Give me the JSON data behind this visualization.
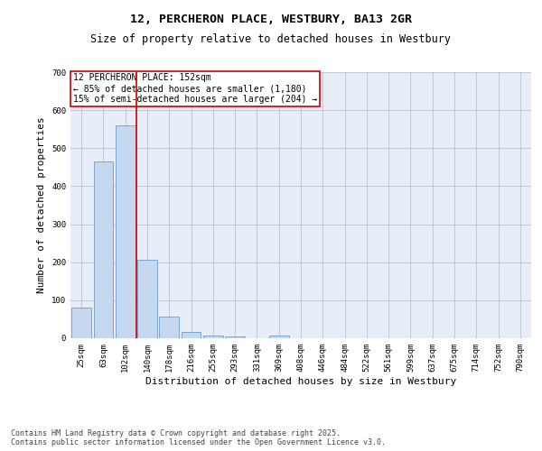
{
  "title": "12, PERCHERON PLACE, WESTBURY, BA13 2GR",
  "subtitle": "Size of property relative to detached houses in Westbury",
  "xlabel": "Distribution of detached houses by size in Westbury",
  "ylabel": "Number of detached properties",
  "categories": [
    "25sqm",
    "63sqm",
    "102sqm",
    "140sqm",
    "178sqm",
    "216sqm",
    "255sqm",
    "293sqm",
    "331sqm",
    "369sqm",
    "408sqm",
    "446sqm",
    "484sqm",
    "522sqm",
    "561sqm",
    "599sqm",
    "637sqm",
    "675sqm",
    "714sqm",
    "752sqm",
    "790sqm"
  ],
  "values": [
    80,
    465,
    560,
    207,
    57,
    16,
    8,
    5,
    0,
    8,
    0,
    0,
    0,
    0,
    0,
    0,
    0,
    0,
    0,
    0,
    0
  ],
  "bar_color": "#c5d8f0",
  "bar_edge_color": "#5b8ec4",
  "vline_after_index": 2,
  "vline_color": "#cc0000",
  "annotation_line1": "12 PERCHERON PLACE: 152sqm",
  "annotation_line2": "← 85% of detached houses are smaller (1,180)",
  "annotation_line3": "15% of semi-detached houses are larger (204) →",
  "annotation_box_color": "#cc0000",
  "ylim": [
    0,
    700
  ],
  "yticks": [
    0,
    100,
    200,
    300,
    400,
    500,
    600,
    700
  ],
  "grid_color": "#c0c8d8",
  "bg_color": "#e8eef8",
  "footnote1": "Contains HM Land Registry data © Crown copyright and database right 2025.",
  "footnote2": "Contains public sector information licensed under the Open Government Licence v3.0.",
  "title_fontsize": 9.5,
  "subtitle_fontsize": 8.5,
  "axis_label_fontsize": 8,
  "tick_fontsize": 6.5,
  "annotation_fontsize": 7,
  "footnote_fontsize": 6
}
